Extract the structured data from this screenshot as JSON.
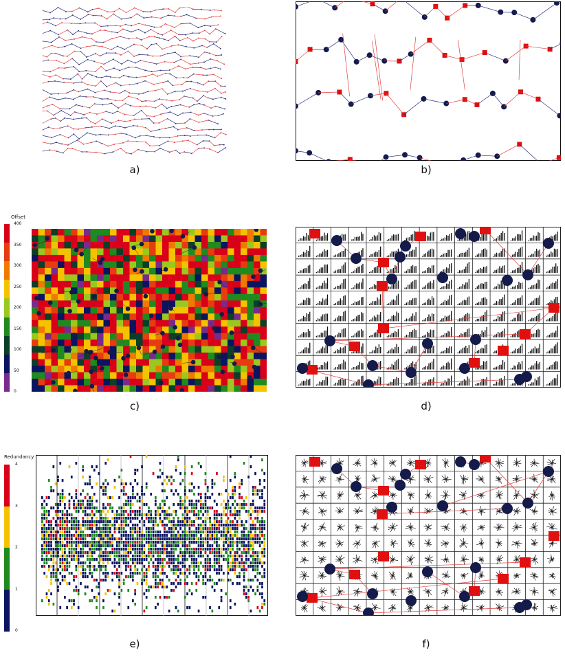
{
  "captions": [
    "a)",
    "b)",
    "c)",
    "d)",
    "e)",
    "f)"
  ],
  "legend_c": {
    "title": "Offset",
    "ticks": [
      "400",
      "350",
      "300",
      "250",
      "200",
      "150",
      "100",
      "50",
      "0"
    ],
    "colors": [
      "#d9001a",
      "#e63c0f",
      "#f07a00",
      "#f5c200",
      "#9ac81e",
      "#1f8a1f",
      "#0c3f27",
      "#0b1460",
      "#7a2a8c"
    ]
  },
  "legend_e": {
    "title": "Redundancy",
    "ticks": [
      "4",
      "3",
      "2",
      "1",
      "0"
    ],
    "colors": [
      "#d9001a",
      "#f5c200",
      "#1f8a1f",
      "#0b1460"
    ]
  },
  "colors": {
    "red": "#e01010",
    "navy": "#141a4a",
    "red_line": "#e04040",
    "blue_line": "#2a2f7a",
    "grid": "#222222"
  }
}
